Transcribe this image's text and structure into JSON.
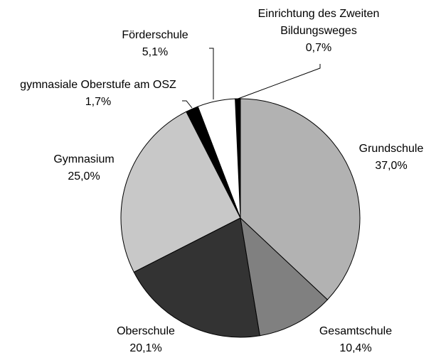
{
  "chart_data": {
    "type": "pie",
    "categories": [
      "Grundschule",
      "Gesamtschule",
      "Oberschule",
      "Gymnasium",
      "gymnasiale Oberstufe am OSZ",
      "Förderschule",
      "Einrichtung des Zweiten Bildungsweges"
    ],
    "values": [
      37.0,
      10.4,
      20.1,
      25.0,
      1.7,
      5.1,
      0.7
    ],
    "value_labels": [
      "37,0%",
      "10,4%",
      "20,1%",
      "25,0%",
      "1,7%",
      "5,1%",
      "0,7%"
    ],
    "colors": [
      "#b2b2b2",
      "#808080",
      "#333333",
      "#c8c8c8",
      "#000000",
      "#ffffff",
      "#000000"
    ]
  }
}
